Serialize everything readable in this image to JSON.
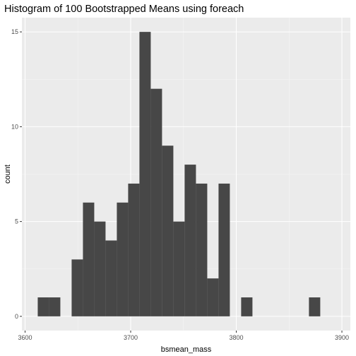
{
  "chart_data": {
    "type": "histogram",
    "title": "Histogram of 100 Bootstrapped Means using foreach",
    "xlabel": "bsmean_mass",
    "ylabel": "count",
    "xlim": [
      3597,
      3908
    ],
    "ylim": [
      -0.75,
      15.75
    ],
    "x_ticks": [
      3600,
      3700,
      3800,
      3900
    ],
    "y_ticks": [
      0,
      5,
      10,
      15
    ],
    "bin_width": 10.7,
    "bins": [
      {
        "start": 3612,
        "count": 1
      },
      {
        "start": 3622.7,
        "count": 1
      },
      {
        "start": 3633.4,
        "count": 0
      },
      {
        "start": 3644.1,
        "count": 3
      },
      {
        "start": 3654.8,
        "count": 6
      },
      {
        "start": 3665.5,
        "count": 5
      },
      {
        "start": 3676.2,
        "count": 4
      },
      {
        "start": 3686.9,
        "count": 6
      },
      {
        "start": 3697.6,
        "count": 7
      },
      {
        "start": 3708.3,
        "count": 15
      },
      {
        "start": 3719.0,
        "count": 12
      },
      {
        "start": 3729.7,
        "count": 9
      },
      {
        "start": 3740.4,
        "count": 5
      },
      {
        "start": 3751.1,
        "count": 8
      },
      {
        "start": 3761.8,
        "count": 7
      },
      {
        "start": 3772.5,
        "count": 2
      },
      {
        "start": 3783.2,
        "count": 7
      },
      {
        "start": 3793.9,
        "count": 0
      },
      {
        "start": 3804.6,
        "count": 1
      },
      {
        "start": 3815.3,
        "count": 0
      },
      {
        "start": 3826.0,
        "count": 0
      },
      {
        "start": 3836.7,
        "count": 0
      },
      {
        "start": 3847.4,
        "count": 0
      },
      {
        "start": 3858.1,
        "count": 0
      },
      {
        "start": 3868.8,
        "count": 1
      }
    ],
    "colors": {
      "panel": "#ebebeb",
      "grid_major": "#ffffff",
      "grid_minor": "#f5f5f5",
      "bar": "#474747",
      "tick": "#333333"
    },
    "grid": true,
    "legend": "none"
  }
}
